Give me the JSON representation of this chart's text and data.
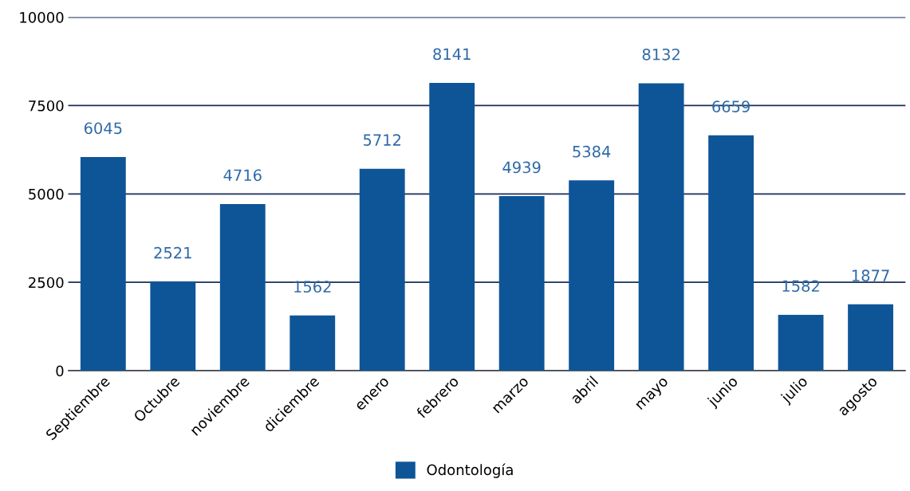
{
  "chart_data": {
    "type": "bar",
    "categories": [
      "Septiembre",
      "Octubre",
      "noviembre",
      "diciembre",
      "enero",
      "febrero",
      "marzo",
      "abril",
      "mayo",
      "junio",
      "julio",
      "agosto"
    ],
    "series": [
      {
        "name": "Odontología",
        "color": "#0e5597",
        "values": [
          6045,
          2521,
          4716,
          1562,
          5712,
          8141,
          4939,
          5384,
          8132,
          6659,
          1582,
          1877
        ]
      }
    ],
    "ylim": [
      0,
      10000
    ],
    "yticks": [
      0,
      2500,
      5000,
      7500,
      10000
    ],
    "grid": "y",
    "data_labels": true,
    "legend": "bottom"
  }
}
